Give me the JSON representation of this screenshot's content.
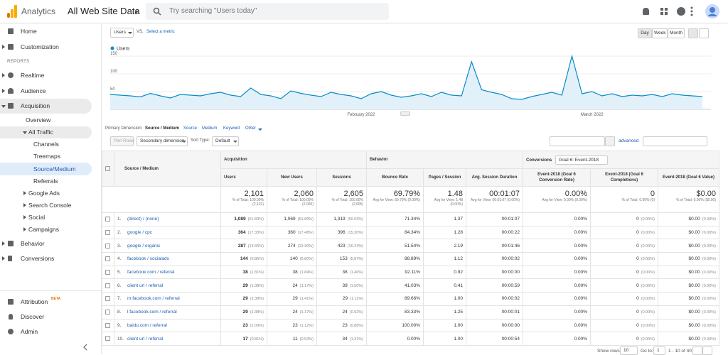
{
  "header": {
    "brand": "Analytics",
    "property": "All Web Site Data",
    "search_placeholder": "Try searching \"Users today\""
  },
  "sidebar": {
    "items": [
      "Home",
      "Customization"
    ],
    "reports_heading": "REPORTS",
    "reports": [
      "Realtime",
      "Audience",
      "Acquisition",
      "Overview",
      "All Traffic",
      "Channels",
      "Treemaps",
      "Source/Medium",
      "Referrals",
      "Google Ads",
      "Search Console",
      "Social",
      "Campaigns",
      "Behavior",
      "Conversions"
    ],
    "footer": [
      "Attribution",
      "Discover",
      "Admin"
    ],
    "beta": "BETA"
  },
  "controls": {
    "metric": "Users",
    "vs": "VS.",
    "select_metric": "Select a metric",
    "periods": [
      "Day",
      "Week",
      "Month"
    ]
  },
  "chart": {
    "type": "line",
    "series_name": "Users",
    "color": "#058dc7",
    "fill": "#e2f0fa",
    "categories": [
      null,
      null,
      null,
      null,
      null,
      null,
      null,
      null,
      null,
      null,
      null,
      null,
      null,
      null,
      null,
      null,
      null,
      null,
      null,
      null,
      null,
      null,
      null,
      null,
      null,
      "February 2022",
      null,
      null,
      null,
      null,
      null,
      null,
      null,
      null,
      null,
      null,
      null,
      null,
      null,
      null,
      null,
      null,
      null,
      null,
      null,
      null,
      null,
      null,
      "March 2022",
      null,
      null,
      null,
      null,
      null,
      null,
      null,
      null,
      null,
      null,
      null
    ],
    "values": [
      42,
      40,
      38,
      35,
      45,
      38,
      32,
      42,
      40,
      38,
      44,
      48,
      40,
      36,
      60,
      42,
      38,
      30,
      52,
      45,
      40,
      36,
      48,
      42,
      38,
      30,
      44,
      50,
      40,
      34,
      38,
      44,
      36,
      48,
      40,
      38,
      134,
      55,
      48,
      42,
      30,
      28,
      36,
      42,
      48,
      40,
      150,
      44,
      50,
      38,
      44,
      36,
      40,
      38,
      42,
      36,
      44,
      40,
      38,
      36
    ],
    "ylim": [
      0,
      150
    ],
    "yticks": [
      50,
      100,
      150
    ],
    "grid": true
  },
  "dimension_bar": {
    "label": "Primary Dimension:",
    "current": "Source / Medium",
    "options": [
      "Source",
      "Medium",
      "Keyword",
      "Other"
    ]
  },
  "toolbar": {
    "plot_rows": "Plot Rows",
    "secondary": "Secondary dimension",
    "sort_label": "Sort Type:",
    "sort_value": "Default",
    "advanced": "advanced"
  },
  "table": {
    "groups": [
      "Acquisition",
      "Behavior",
      "Conversions"
    ],
    "goal_select": "Goal 6: Event-2018",
    "columns": [
      "Source / Medium",
      "Users",
      "New Users",
      "Sessions",
      "Bounce Rate",
      "Pages / Session",
      "Avg. Session Duration",
      "Event-2018 (Goal 6 Conversion Rate)",
      "Event-2018 (Goal 6 Completions)",
      "Event-2018 (Goal 6 Value)"
    ],
    "totals": [
      {
        "value": "2,101",
        "sub": "% of Total: 100.00% (2,101)"
      },
      {
        "value": "2,060",
        "sub": "% of Total: 100.00% (2,060)"
      },
      {
        "value": "2,605",
        "sub": "% of Total: 100.00% (2,605)"
      },
      {
        "value": "69.79%",
        "sub": "Avg for View: 69.79% (0.00%)"
      },
      {
        "value": "1.48",
        "sub": "Avg for View: 1.48 (0.00%)"
      },
      {
        "value": "00:01:07",
        "sub": "Avg for View: 00:01:07 (0.00%)"
      },
      {
        "value": "0.00%",
        "sub": "Avg for View: 0.00% (0.00%)"
      },
      {
        "value": "0",
        "sub": "% of Total: 0.00% (0)"
      },
      {
        "value": "$0.00",
        "sub": "% of Total: 0.00% ($0.00)"
      }
    ],
    "rows": [
      [
        "1.",
        "(direct) / (none)",
        "1,089",
        "(51.83%)",
        "1,069",
        "(51.89%)",
        "1,319",
        "(50.63%)",
        "71.34%",
        "1.37",
        "00:01:07",
        "0.00%",
        "0",
        "(0.00%)",
        "$0.00",
        "(0.00%)"
      ],
      [
        "2.",
        "google / cpc",
        "364",
        "(17.33%)",
        "360",
        "(17.48%)",
        "396",
        "(15.20%)",
        "84.34%",
        "1.28",
        "00:00:22",
        "0.00%",
        "0",
        "(0.00%)",
        "$0.00",
        "(0.00%)"
      ],
      [
        "3.",
        "google / organic",
        "287",
        "(13.66%)",
        "274",
        "(13.30%)",
        "423",
        "(16.24%)",
        "51.54%",
        "2.19",
        "00:01:46",
        "0.00%",
        "0",
        "(0.00%)",
        "$0.00",
        "(0.00%)"
      ],
      [
        "4.",
        "facebook / socialads",
        "144",
        "(6.85%)",
        "140",
        "(6.80%)",
        "153",
        "(5.87%)",
        "88.89%",
        "1.12",
        "00:00:02",
        "0.00%",
        "0",
        "(0.00%)",
        "$0.00",
        "(0.00%)"
      ],
      [
        "5.",
        "facebook.com / referral",
        "38",
        "(1.81%)",
        "38",
        "(1.84%)",
        "38",
        "(1.46%)",
        "92.11%",
        "0.92",
        "00:00:00",
        "0.00%",
        "0",
        "(0.00%)",
        "$0.00",
        "(0.00%)"
      ],
      [
        "6.",
        "client url / referral",
        "29",
        "(1.38%)",
        "24",
        "(1.17%)",
        "39",
        "(1.50%)",
        "41.03%",
        "0.41",
        "00:00:59",
        "0.00%",
        "0",
        "(0.00%)",
        "$0.00",
        "(0.00%)"
      ],
      [
        "7.",
        "m.facebook.com / referral",
        "29",
        "(1.38%)",
        "29",
        "(1.41%)",
        "29",
        "(1.11%)",
        "89.66%",
        "1.00",
        "00:00:02",
        "0.00%",
        "0",
        "(0.00%)",
        "$0.00",
        "(0.00%)"
      ],
      [
        "8.",
        "l.facebook.com / referral",
        "29",
        "(1.38%)",
        "24",
        "(1.17%)",
        "24",
        "(0.92%)",
        "83.33%",
        "1.25",
        "00:00:01",
        "0.00%",
        "0",
        "(0.00%)",
        "$0.00",
        "(0.00%)"
      ],
      [
        "9.",
        "baidu.com / referral",
        "23",
        "(1.09%)",
        "23",
        "(1.12%)",
        "23",
        "(0.88%)",
        "100.00%",
        "1.00",
        "00:00:00",
        "0.00%",
        "0",
        "(0.00%)",
        "$0.00",
        "(0.00%)"
      ],
      [
        "10.",
        "client url / referral",
        "17",
        "(0.81%)",
        "11",
        "(0.53%)",
        "34",
        "(1.31%)",
        "0.00%",
        "1.00",
        "00:00:54",
        "0.00%",
        "0",
        "(0.00%)",
        "$0.00",
        "(0.00%)"
      ]
    ]
  },
  "pagination": {
    "show_rows_label": "Show rows:",
    "show_rows": "10",
    "goto_label": "Go to:",
    "goto": "1",
    "range": "1 - 10 of 40"
  }
}
